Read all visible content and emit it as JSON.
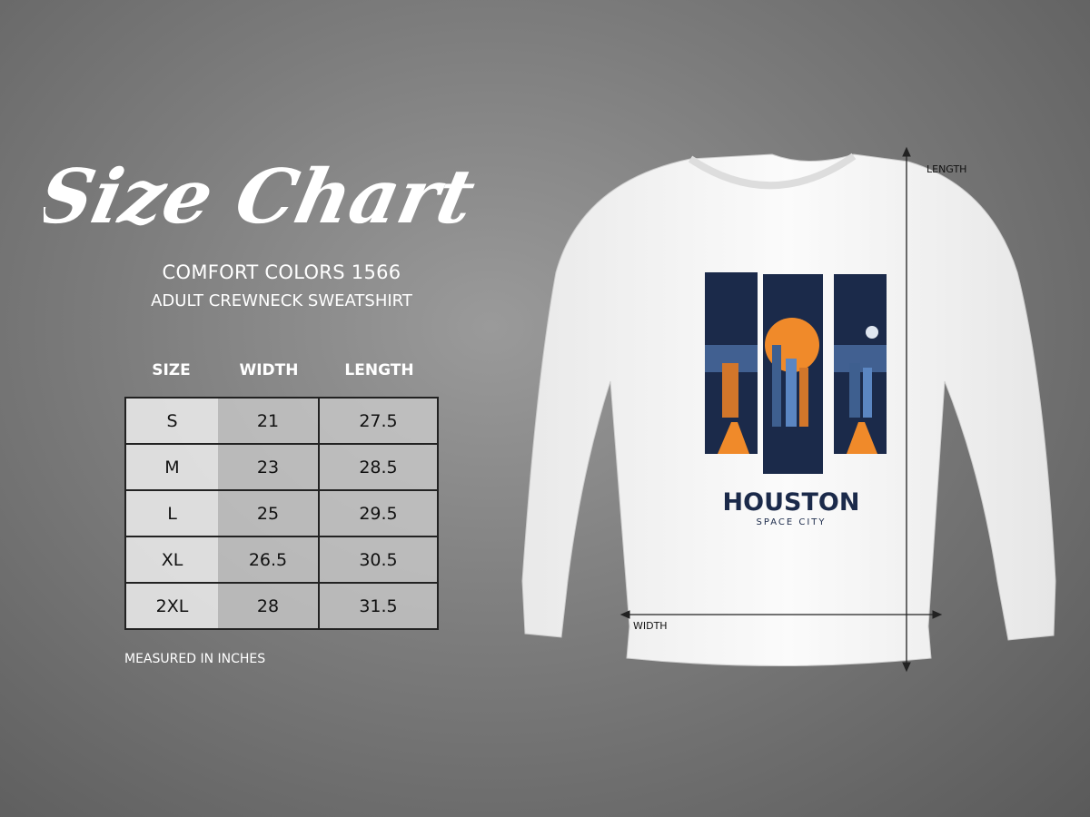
{
  "title": "Size Chart",
  "subtitle": "COMFORT COLORS 1566",
  "product": "ADULT CREWNECK SWEATSHIRT",
  "table": {
    "headers": [
      "SIZE",
      "WIDTH",
      "LENGTH"
    ],
    "rows": [
      [
        "S",
        "21",
        "27.5"
      ],
      [
        "M",
        "23",
        "28.5"
      ],
      [
        "L",
        "25",
        "29.5"
      ],
      [
        "XL",
        "26.5",
        "30.5"
      ],
      [
        "2XL",
        "28",
        "31.5"
      ]
    ]
  },
  "note": "MEASURED IN INCHES",
  "diagram": {
    "length_label": "LENGTH",
    "width_label": "WIDTH"
  },
  "print": {
    "headline": "HOUSTON",
    "tagline": "SPACE CITY",
    "colors": {
      "navy": "#1b2a4a",
      "orange": "#f08a2a",
      "blue": "#5b86c2"
    }
  }
}
